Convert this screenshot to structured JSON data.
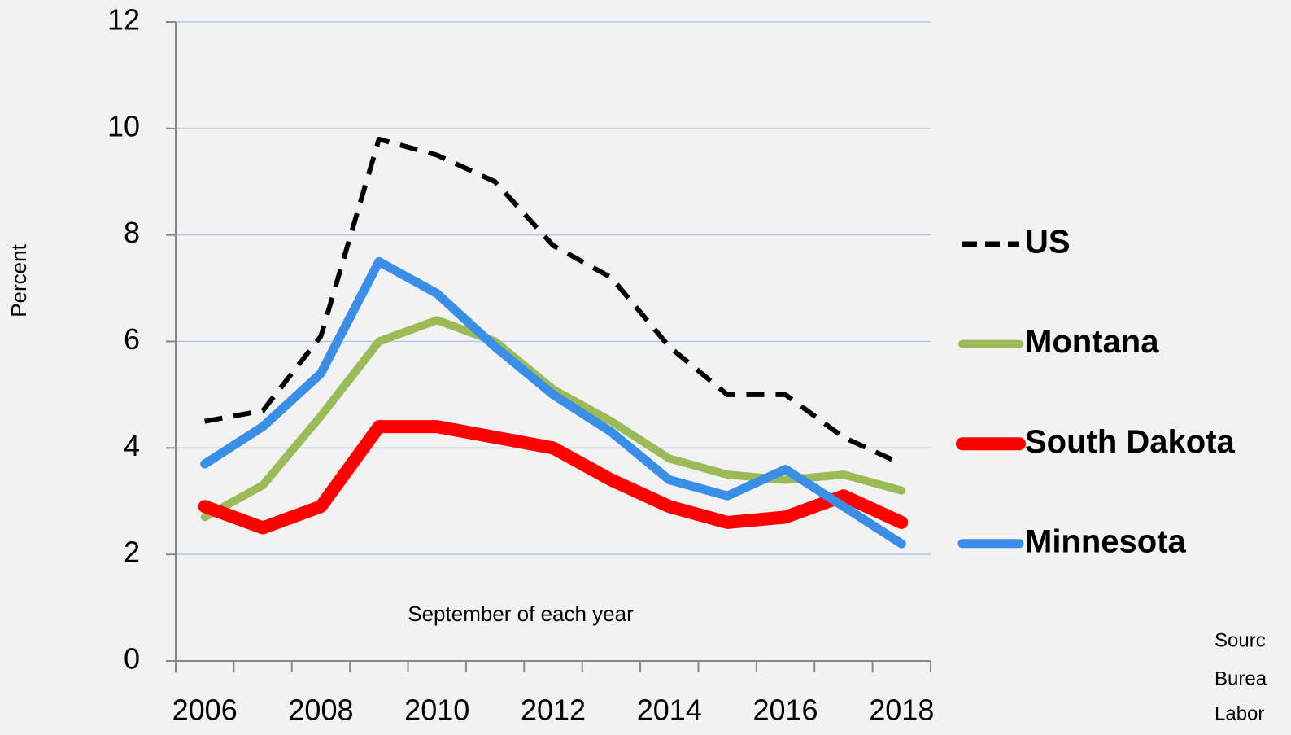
{
  "chart_data": {
    "type": "line",
    "y_label": "Percent",
    "annotation": "September of each year",
    "source": [
      "Sourc",
      "Burea",
      "Labor"
    ],
    "categories": [
      "2006",
      null,
      "2008",
      null,
      "2010",
      null,
      "2012",
      null,
      "2014",
      null,
      "2016",
      null,
      "2018"
    ],
    "ylim": [
      0,
      12
    ],
    "yticks": [
      0,
      2,
      4,
      6,
      8,
      10,
      12
    ],
    "grid": true,
    "legend": "right",
    "series": [
      {
        "name": "US",
        "color": "#000000",
        "style": "dashed",
        "values": [
          4.5,
          4.7,
          6.1,
          9.8,
          9.5,
          9.0,
          7.8,
          7.2,
          5.9,
          5.0,
          5.0,
          4.2,
          3.7
        ]
      },
      {
        "name": "Montana",
        "color": "#9bbb59",
        "style": "solid",
        "values": [
          2.7,
          3.3,
          4.6,
          6.0,
          6.4,
          6.0,
          5.1,
          4.5,
          3.8,
          3.5,
          3.4,
          3.5,
          3.2
        ]
      },
      {
        "name": "South Dakota",
        "color": "#ff0000",
        "style": "solid",
        "values": [
          2.9,
          2.5,
          2.9,
          4.4,
          4.4,
          4.2,
          4.0,
          3.4,
          2.9,
          2.6,
          2.7,
          3.1,
          2.6
        ]
      },
      {
        "name": "Minnesota",
        "color": "#3a8ee6",
        "style": "solid",
        "values": [
          3.7,
          4.4,
          5.4,
          7.5,
          6.9,
          5.9,
          5.0,
          4.3,
          3.4,
          3.1,
          3.6,
          2.9,
          2.2
        ]
      }
    ]
  }
}
